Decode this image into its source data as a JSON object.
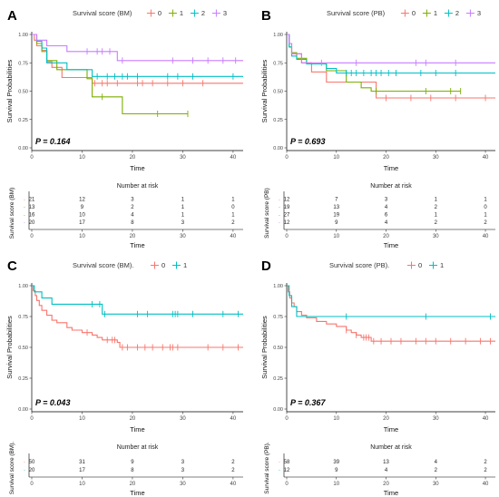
{
  "figure": {
    "x_label": "Time",
    "y_label": "Survival Probabilities",
    "risk_table_title": "Number at risk",
    "colors": {
      "level_0": "#F8766D",
      "level_1": "#7CAE00",
      "level_2": "#00BFC4",
      "level_3": "#C77CFF",
      "two_level_0": "#F8766D",
      "two_level_1": "#00BFC4"
    }
  },
  "chart_data": [
    {
      "panel_letter": "A",
      "type": "line",
      "legend_title": "Survival score (BM)",
      "strata": [
        "0",
        "1",
        "2",
        "3"
      ],
      "p_value": "P = 0.164",
      "risk_table_ylabel": "Survival score (BM)",
      "xlim": [
        0,
        42
      ],
      "ylim": [
        0,
        1
      ],
      "x_ticks": [
        0,
        10,
        20,
        30,
        40
      ],
      "y_ticks": [
        "0.00",
        "0.25",
        "0.50",
        "0.75",
        "1.00"
      ],
      "series": [
        {
          "name": "0",
          "curve": [
            [
              0,
              1.0
            ],
            [
              0.5,
              0.95
            ],
            [
              1,
              0.9
            ],
            [
              2,
              0.86
            ],
            [
              3,
              0.76
            ],
            [
              4,
              0.71
            ],
            [
              6,
              0.62
            ],
            [
              12,
              0.57
            ],
            [
              42,
              0.57
            ]
          ],
          "censor_x": [
            12.5,
            14,
            15,
            17,
            21,
            22,
            24,
            27,
            30,
            34
          ]
        },
        {
          "name": "1",
          "curve": [
            [
              0,
              1.0
            ],
            [
              1,
              0.92
            ],
            [
              2,
              0.85
            ],
            [
              3,
              0.77
            ],
            [
              5,
              0.69
            ],
            [
              11,
              0.61
            ],
            [
              12,
              0.45
            ],
            [
              18,
              0.3
            ],
            [
              31,
              0.3
            ]
          ],
          "censor_x": [
            14,
            25,
            31
          ]
        },
        {
          "name": "2",
          "curve": [
            [
              0,
              1.0
            ],
            [
              1,
              0.94
            ],
            [
              2,
              0.88
            ],
            [
              3,
              0.75
            ],
            [
              7,
              0.69
            ],
            [
              12,
              0.63
            ],
            [
              42,
              0.63
            ]
          ],
          "censor_x": [
            13,
            15,
            16.5,
            18,
            19,
            21,
            27,
            29,
            32,
            40
          ]
        },
        {
          "name": "3",
          "curve": [
            [
              0,
              1.0
            ],
            [
              1,
              0.95
            ],
            [
              3,
              0.9
            ],
            [
              7,
              0.85
            ],
            [
              17,
              0.77
            ],
            [
              42,
              0.77
            ]
          ],
          "censor_x": [
            11,
            13,
            14,
            15.5,
            18,
            28,
            32,
            35,
            38,
            40.5
          ]
        }
      ],
      "risk_table": {
        "times": [
          0,
          10,
          20,
          30,
          40
        ],
        "rows": [
          [
            "21",
            "12",
            "3",
            "1",
            "1"
          ],
          [
            "13",
            "9",
            "2",
            "1",
            "0"
          ],
          [
            "16",
            "10",
            "4",
            "1",
            "1"
          ],
          [
            "20",
            "17",
            "8",
            "3",
            "2"
          ]
        ]
      }
    },
    {
      "panel_letter": "B",
      "type": "line",
      "legend_title": "Survival score (PB)",
      "strata": [
        "0",
        "1",
        "2",
        "3"
      ],
      "p_value": "P = 0.693",
      "risk_table_ylabel": "Survival score (PB)",
      "xlim": [
        0,
        42
      ],
      "ylim": [
        0,
        1
      ],
      "x_ticks": [
        0,
        10,
        20,
        30,
        40
      ],
      "y_ticks": [
        "0.00",
        "0.25",
        "0.50",
        "0.75",
        "1.00"
      ],
      "series": [
        {
          "name": "0",
          "curve": [
            [
              0,
              1.0
            ],
            [
              0.5,
              0.92
            ],
            [
              1,
              0.83
            ],
            [
              3,
              0.75
            ],
            [
              5,
              0.67
            ],
            [
              8,
              0.58
            ],
            [
              18,
              0.44
            ],
            [
              42,
              0.44
            ]
          ],
          "censor_x": [
            20,
            25,
            29,
            34,
            40
          ]
        },
        {
          "name": "1",
          "curve": [
            [
              0,
              1.0
            ],
            [
              0.5,
              0.89
            ],
            [
              1,
              0.84
            ],
            [
              2,
              0.79
            ],
            [
              4,
              0.74
            ],
            [
              8,
              0.68
            ],
            [
              12,
              0.58
            ],
            [
              15,
              0.53
            ],
            [
              17,
              0.5
            ],
            [
              35,
              0.5
            ]
          ],
          "censor_x": [
            18,
            28,
            33,
            35
          ]
        },
        {
          "name": "2",
          "curve": [
            [
              0,
              1.0
            ],
            [
              0.5,
              0.89
            ],
            [
              1,
              0.81
            ],
            [
              2,
              0.78
            ],
            [
              4,
              0.74
            ],
            [
              8,
              0.7
            ],
            [
              10,
              0.66
            ],
            [
              42,
              0.66
            ]
          ],
          "censor_x": [
            12,
            13,
            14,
            15.5,
            17,
            18,
            19,
            20.5,
            22,
            27,
            30,
            34
          ]
        },
        {
          "name": "3",
          "curve": [
            [
              0,
              1.0
            ],
            [
              0.5,
              0.92
            ],
            [
              1,
              0.83
            ],
            [
              3,
              0.75
            ],
            [
              42,
              0.75
            ]
          ],
          "censor_x": [
            7,
            14,
            26,
            28,
            34
          ]
        }
      ],
      "risk_table": {
        "times": [
          0,
          10,
          20,
          30,
          40
        ],
        "rows": [
          [
            "12",
            "7",
            "3",
            "1",
            "1"
          ],
          [
            "19",
            "13",
            "4",
            "2",
            "0"
          ],
          [
            "27",
            "19",
            "6",
            "1",
            "1"
          ],
          [
            "12",
            "9",
            "4",
            "2",
            "2"
          ]
        ]
      }
    },
    {
      "panel_letter": "C",
      "type": "line",
      "legend_title": "Survival score (BM).",
      "strata": [
        "0",
        "1"
      ],
      "p_value": "P = 0.043",
      "risk_table_ylabel": "Survival score (BM).",
      "xlim": [
        0,
        42
      ],
      "ylim": [
        0,
        1
      ],
      "x_ticks": [
        0,
        10,
        20,
        30,
        40
      ],
      "y_ticks": [
        "0.00",
        "0.25",
        "0.50",
        "0.75",
        "1.00"
      ],
      "series": [
        {
          "name": "0",
          "curve": [
            [
              0,
              1.0
            ],
            [
              0.3,
              0.96
            ],
            [
              0.7,
              0.92
            ],
            [
              1,
              0.88
            ],
            [
              1.5,
              0.84
            ],
            [
              2,
              0.8
            ],
            [
              3,
              0.76
            ],
            [
              4,
              0.72
            ],
            [
              5,
              0.7
            ],
            [
              7,
              0.66
            ],
            [
              8,
              0.64
            ],
            [
              10,
              0.62
            ],
            [
              12,
              0.6
            ],
            [
              13,
              0.58
            ],
            [
              14,
              0.56
            ],
            [
              17,
              0.54
            ],
            [
              17.5,
              0.5
            ],
            [
              42,
              0.5
            ]
          ],
          "censor_x": [
            11,
            15,
            16,
            16.5,
            18,
            19,
            21,
            22.5,
            24,
            26,
            27.5,
            28,
            29,
            35,
            38,
            41
          ]
        },
        {
          "name": "1",
          "curve": [
            [
              0,
              1.0
            ],
            [
              0.5,
              0.95
            ],
            [
              2,
              0.9
            ],
            [
              4,
              0.85
            ],
            [
              14,
              0.77
            ],
            [
              42,
              0.77
            ]
          ],
          "censor_x": [
            12,
            13.5,
            14.5,
            21,
            23,
            28,
            28.5,
            29,
            32,
            38,
            41
          ]
        }
      ],
      "risk_table": {
        "times": [
          0,
          10,
          20,
          30,
          40
        ],
        "rows": [
          [
            "50",
            "31",
            "9",
            "3",
            "2"
          ],
          [
            "20",
            "17",
            "8",
            "3",
            "2"
          ]
        ]
      }
    },
    {
      "panel_letter": "D",
      "type": "line",
      "legend_title": "Survival score (PB).",
      "strata": [
        "0",
        "1"
      ],
      "p_value": "P = 0.367",
      "risk_table_ylabel": "Survival score (PB).",
      "xlim": [
        0,
        42
      ],
      "ylim": [
        0,
        1
      ],
      "x_ticks": [
        0,
        10,
        20,
        30,
        40
      ],
      "y_ticks": [
        "0.00",
        "0.25",
        "0.50",
        "0.75",
        "1.00"
      ],
      "series": [
        {
          "name": "0",
          "curve": [
            [
              0,
              1.0
            ],
            [
              0.3,
              0.95
            ],
            [
              0.6,
              0.9
            ],
            [
              1,
              0.86
            ],
            [
              1.5,
              0.83
            ],
            [
              2,
              0.79
            ],
            [
              3,
              0.76
            ],
            [
              4,
              0.74
            ],
            [
              6,
              0.71
            ],
            [
              8,
              0.69
            ],
            [
              10,
              0.67
            ],
            [
              12,
              0.64
            ],
            [
              13,
              0.62
            ],
            [
              14,
              0.6
            ],
            [
              15,
              0.58
            ],
            [
              17,
              0.55
            ],
            [
              42,
              0.55
            ]
          ],
          "censor_x": [
            12,
            14,
            15.5,
            16,
            16.5,
            17.5,
            19,
            21,
            23,
            26,
            28,
            30,
            33,
            36,
            39,
            41
          ]
        },
        {
          "name": "1",
          "curve": [
            [
              0,
              1.0
            ],
            [
              0.5,
              0.92
            ],
            [
              1,
              0.83
            ],
            [
              2,
              0.75
            ],
            [
              42,
              0.75
            ]
          ],
          "censor_x": [
            12,
            28,
            41
          ]
        }
      ],
      "risk_table": {
        "times": [
          0,
          10,
          20,
          30,
          40
        ],
        "rows": [
          [
            "58",
            "39",
            "13",
            "4",
            "2"
          ],
          [
            "12",
            "9",
            "4",
            "2",
            "2"
          ]
        ]
      }
    }
  ]
}
